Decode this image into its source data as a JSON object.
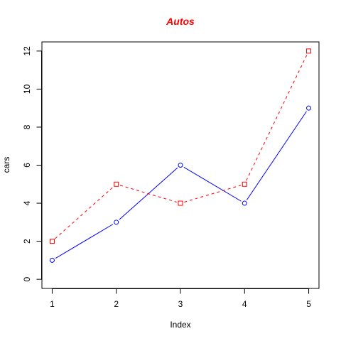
{
  "chart_data": {
    "type": "line",
    "title": "Autos",
    "title_color": "#ff0000",
    "xlabel": "Index",
    "ylabel": "cars",
    "x": [
      1,
      2,
      3,
      4,
      5
    ],
    "xlim": [
      0.84,
      5.16
    ],
    "ylim": [
      -0.48,
      12.48
    ],
    "x_ticks": [
      1,
      2,
      3,
      4,
      5
    ],
    "y_ticks": [
      0,
      2,
      4,
      6,
      8,
      10,
      12
    ],
    "grid": false,
    "legend": "none",
    "series": [
      {
        "values": [
          1,
          3,
          6,
          4,
          9
        ],
        "color": "#0000ff",
        "line_style": "solid",
        "marker": "circle"
      },
      {
        "values": [
          2,
          5,
          4,
          5,
          12
        ],
        "color": "#ff0000",
        "line_style": "dashed",
        "marker": "square"
      }
    ]
  }
}
